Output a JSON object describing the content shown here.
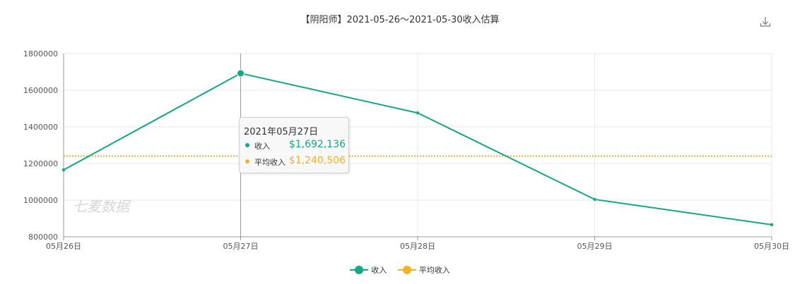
{
  "title": "【阴阳师】2021-05-26～2021-05-30收入估算",
  "watermark": "七麦数据",
  "colors": {
    "revenue": "#14a884",
    "average": "#f5b027",
    "grid": "#e8e8e8",
    "axis": "#999999",
    "axis_text": "#555555"
  },
  "chart_data": {
    "type": "line",
    "title": "【阴阳师】2021-05-26～2021-05-30收入估算",
    "categories": [
      "05月26日",
      "05月27日",
      "05月28日",
      "05月29日",
      "05月30日"
    ],
    "series": [
      {
        "name": "收入",
        "values": [
          1165000,
          1692136,
          1476000,
          1004000,
          866000
        ],
        "style": "solid",
        "color": "#14a884"
      },
      {
        "name": "平均收入",
        "values": [
          1240506,
          1240506,
          1240506,
          1240506,
          1240506
        ],
        "style": "dotted",
        "color": "#f5b027"
      }
    ],
    "y_ticks": [
      "800000",
      "1000000",
      "1200000",
      "1400000",
      "1600000",
      "1800000"
    ],
    "ylim": [
      800000,
      1800000
    ],
    "grid": true,
    "legend": "bottom-center",
    "highlight_index": 1
  },
  "tooltip": {
    "title": "2021年05月27日",
    "rows": [
      {
        "name": "收入",
        "value": "$1,692,136"
      },
      {
        "name": "平均收入",
        "value": "$1,240,506"
      }
    ]
  },
  "legend": {
    "items": [
      {
        "label": "收入",
        "color": "#14a884"
      },
      {
        "label": "平均收入",
        "color": "#f5b027"
      }
    ]
  },
  "download_icon": "download-icon"
}
